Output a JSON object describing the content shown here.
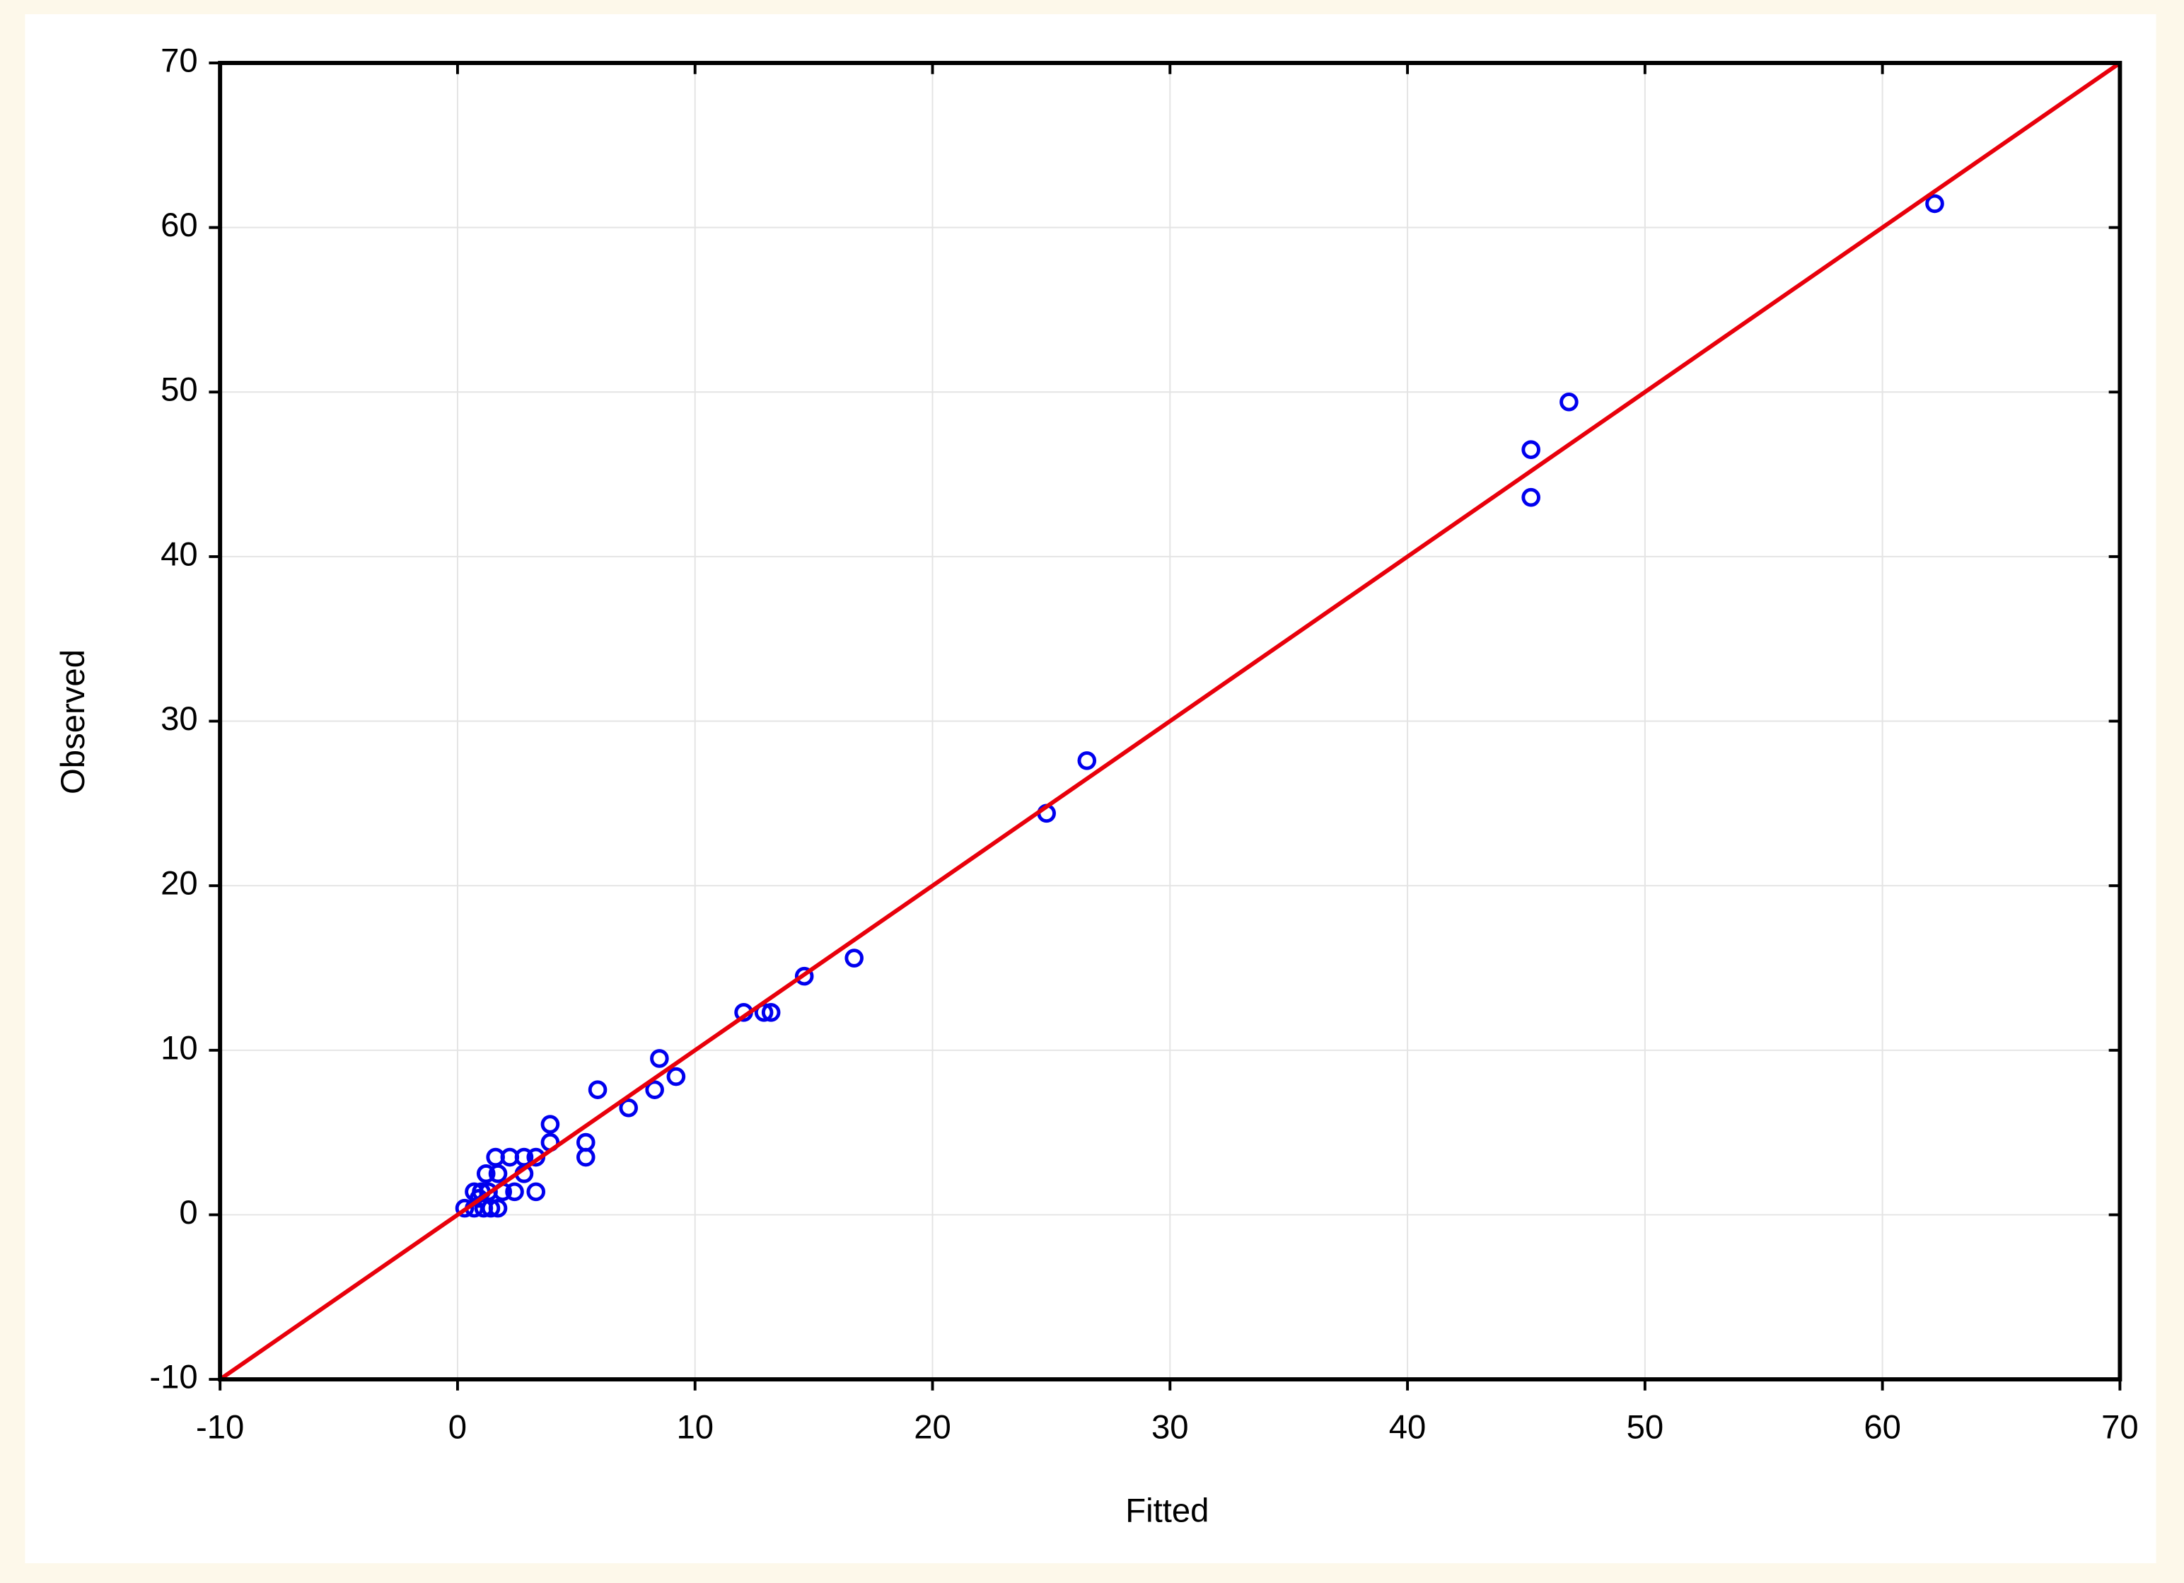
{
  "chart_data": {
    "type": "scatter",
    "x_label": "Fitted",
    "y_label": "Observed",
    "xlim": [
      -10,
      70
    ],
    "ylim": [
      -10,
      70
    ],
    "xticks": [
      -10,
      0,
      10,
      20,
      30,
      40,
      50,
      60,
      70
    ],
    "yticks": [
      -10,
      0,
      10,
      20,
      30,
      40,
      50,
      60,
      70
    ],
    "grid": true,
    "series": [
      {
        "color": "#0000ee",
        "x": [
          62.2,
          46.8,
          45.2,
          45.2,
          26.5,
          24.8,
          16.7,
          14.6,
          12.05,
          12.9,
          13.2,
          8.5,
          9.2,
          5.9,
          8.3,
          7.2,
          3.9,
          5.4,
          5.4,
          3.9,
          3.3,
          3.3,
          1.6,
          2.2,
          2.8,
          1.2,
          1.7,
          2.8,
          2.4,
          0.7,
          1.0,
          1.3,
          1.9,
          0.3,
          0.7,
          1.1,
          1.4,
          1.7,
          0.9
        ],
        "values": [
          61.45,
          49.4,
          46.5,
          43.6,
          27.6,
          24.4,
          15.6,
          14.5,
          12.3,
          12.3,
          12.3,
          9.5,
          8.4,
          7.6,
          7.6,
          6.5,
          5.5,
          4.4,
          3.5,
          4.4,
          3.5,
          1.4,
          3.5,
          3.5,
          3.5,
          2.5,
          2.5,
          2.5,
          1.4,
          1.4,
          1.4,
          1.4,
          1.4,
          0.4,
          0.4,
          0.4,
          0.4,
          0.4,
          1.0
        ]
      }
    ],
    "fit_line": {
      "color": "#e8000b",
      "x": [
        -10,
        70
      ],
      "values": [
        -10,
        70
      ]
    }
  }
}
